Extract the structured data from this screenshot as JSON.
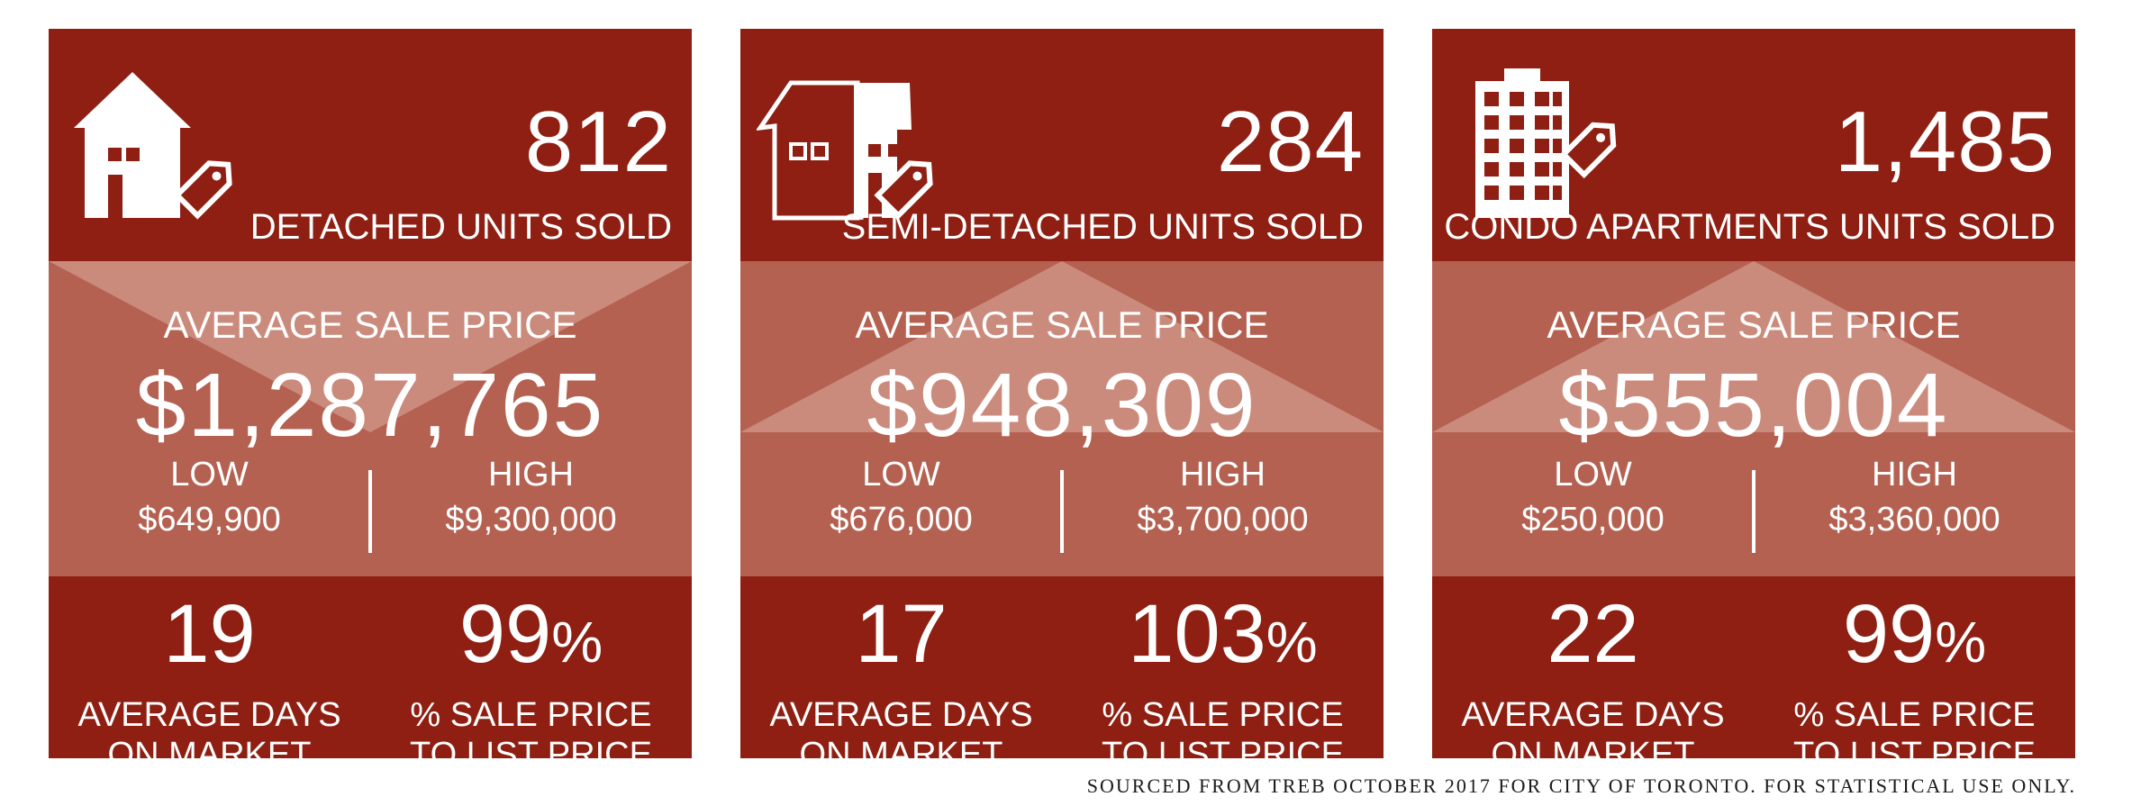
{
  "cards": [
    {
      "icon": "detached-house-tag-icon",
      "units": "812",
      "units_label": "DETACHED UNITS SOLD",
      "avg_label": "AVERAGE SALE PRICE",
      "avg_price": "$1,287,765",
      "low_label": "LOW",
      "low_value": "$649,900",
      "high_label": "HIGH",
      "high_value": "$9,300,000",
      "days": "19",
      "days_label_1": "AVERAGE DAYS",
      "days_label_2": "ON MARKET",
      "ratio": "99",
      "ratio_unit": "%",
      "ratio_label_1": "% SALE PRICE",
      "ratio_label_2": "TO LIST PRICE"
    },
    {
      "icon": "semi-detached-house-tag-icon",
      "units": "284",
      "units_label": "SEMI-DETACHED UNITS SOLD",
      "avg_label": "AVERAGE SALE PRICE",
      "avg_price": "$948,309",
      "low_label": "LOW",
      "low_value": "$676,000",
      "high_label": "HIGH",
      "high_value": "$3,700,000",
      "days": "17",
      "days_label_1": "AVERAGE DAYS",
      "days_label_2": "ON MARKET",
      "ratio": "103",
      "ratio_unit": "%",
      "ratio_label_1": "% SALE PRICE",
      "ratio_label_2": "TO LIST PRICE"
    },
    {
      "icon": "condo-building-tag-icon",
      "units": "1,485",
      "units_label": "CONDO APARTMENTS UNITS SOLD",
      "avg_label": "AVERAGE SALE PRICE",
      "avg_price": "$555,004",
      "low_label": "LOW",
      "low_value": "$250,000",
      "high_label": "HIGH",
      "high_value": "$3,360,000",
      "days": "22",
      "days_label_1": "AVERAGE DAYS",
      "days_label_2": "ON MARKET",
      "ratio": "99",
      "ratio_unit": "%",
      "ratio_label_1": "% SALE PRICE",
      "ratio_label_2": "TO LIST PRICE"
    }
  ],
  "source": "Sourced from TREB October 2017 for City of Toronto. For statistical use only.",
  "colors": {
    "card_dark": "#8e1f12",
    "card_mid": "#b46151",
    "envelope_light": "#cb8b7c",
    "text": "#ffffff"
  }
}
